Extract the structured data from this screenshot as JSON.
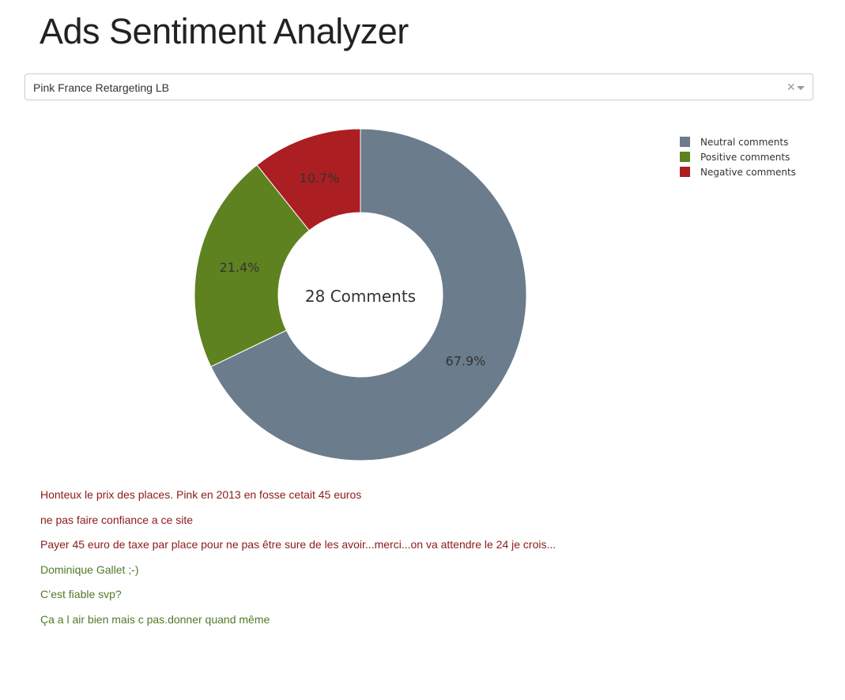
{
  "page": {
    "title": "Ads Sentiment Analyzer"
  },
  "selector": {
    "value": "Pink France Retargeting LB",
    "clear_symbol": "×"
  },
  "chart_data": {
    "type": "pie",
    "hole": true,
    "center_label": "28 Comments",
    "legend_position": "top-right",
    "slices": [
      {
        "name": "Neutral comments",
        "value": 19,
        "percent_label": "67.9%",
        "color": "#6b7c8c"
      },
      {
        "name": "Positive comments",
        "value": 6,
        "percent_label": "21.4%",
        "color": "#5e821f"
      },
      {
        "name": "Negative comments",
        "value": 3,
        "percent_label": "10.7%",
        "color": "#ab1e22"
      }
    ],
    "legend": [
      "Neutral comments",
      "Positive comments",
      "Negative comments"
    ],
    "legend_colors": [
      "#6b7c8c",
      "#5e821f",
      "#ab1e22"
    ]
  },
  "comments": [
    {
      "text": "Honteux le prix des places. Pink en 2013 en fosse cetait 45 euros",
      "sentiment": "negative"
    },
    {
      "text": "ne pas faire confiance a ce site",
      "sentiment": "negative"
    },
    {
      "text": "Payer 45 euro de taxe par place pour ne pas être sure de les avoir...merci...on va attendre le 24 je crois...",
      "sentiment": "negative"
    },
    {
      "text": "Dominique Gallet ;-)",
      "sentiment": "positive"
    },
    {
      "text": "C’est fiable svp?",
      "sentiment": "positive"
    },
    {
      "text": "Ça a l air bien mais c pas.donner quand même",
      "sentiment": "positive"
    }
  ],
  "colors": {
    "negative_text": "#8b1a1a",
    "positive_text": "#4f7a28"
  }
}
